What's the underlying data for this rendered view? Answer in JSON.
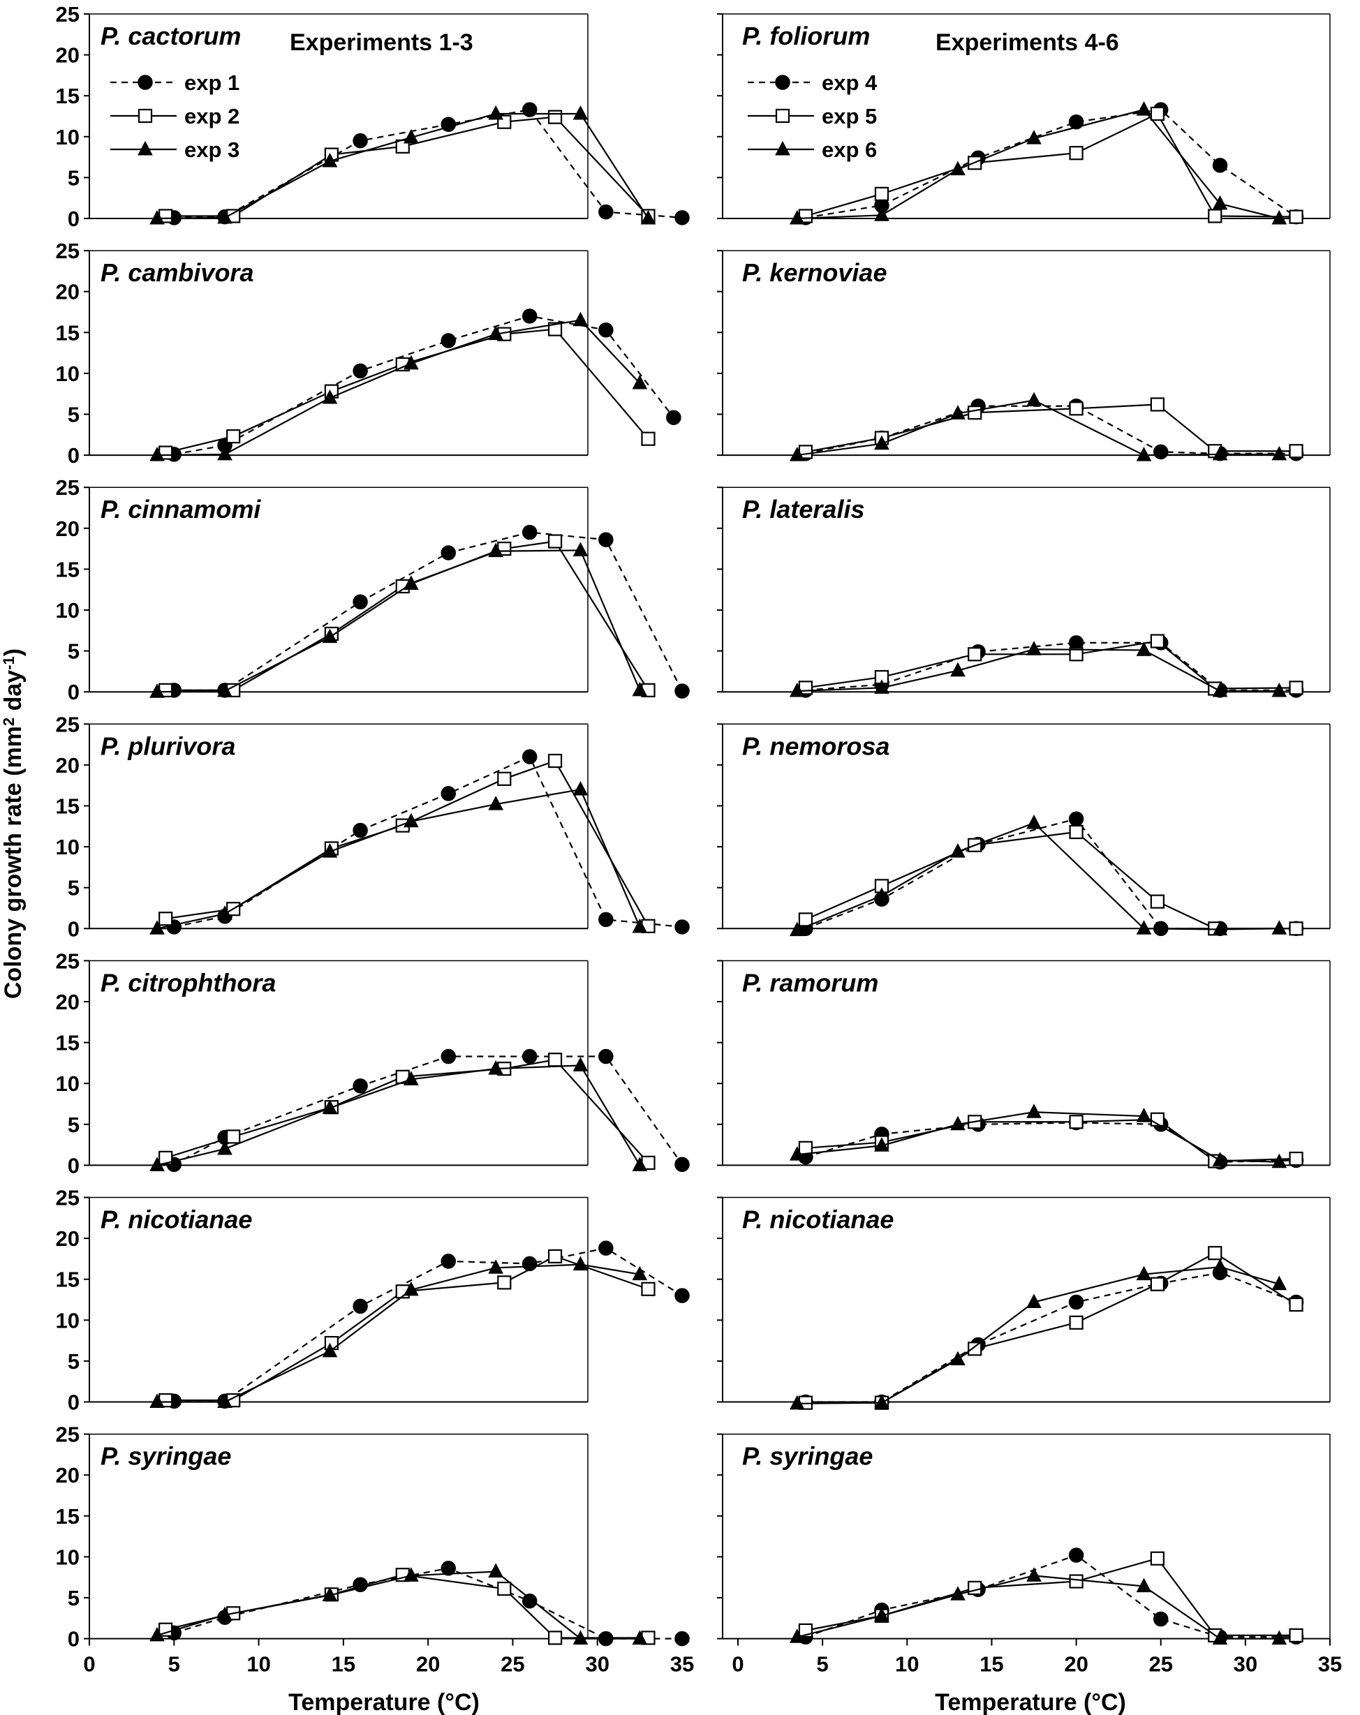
{
  "figure": {
    "ylabel_main": "Colony growth rate (mm",
    "ylabel_sup1": "2",
    "ylabel_mid": " day",
    "ylabel_sup2": "-1",
    "ylabel_end": ")",
    "xlabel_left": "Temperature (°C)",
    "xlabel_right": "Temperature (°C)",
    "header_left": "Experiments 1-3",
    "header_right": "Experiments 4-6",
    "legend_left": [
      "exp 1",
      "exp 2",
      "exp 3"
    ],
    "legend_right": [
      "exp 4",
      "exp 5",
      "exp 6"
    ],
    "y_ticks": [
      "0",
      "5",
      "10",
      "15",
      "20",
      "25"
    ],
    "x_ticks": [
      "0",
      "5",
      "10",
      "15",
      "20",
      "25",
      "30",
      "35"
    ]
  },
  "chart_data": [
    {
      "type": "line",
      "title": "P. cactorum",
      "column": "left",
      "row": 0,
      "xlabel": "",
      "ylabel": "",
      "xlim": [
        0,
        35
      ],
      "ylim": [
        0,
        25
      ],
      "series": [
        {
          "name": "exp 1",
          "x": [
            5,
            8,
            16,
            21.2,
            26,
            30.5,
            35
          ],
          "y": [
            0.1,
            0.2,
            9.5,
            11.5,
            13.3,
            0.8,
            0.1
          ]
        },
        {
          "name": "exp 2",
          "x": [
            4.5,
            8.5,
            14.3,
            18.5,
            24.5,
            27.5,
            33
          ],
          "y": [
            0.3,
            0.3,
            7.8,
            8.8,
            11.8,
            12.4,
            0.3
          ]
        },
        {
          "name": "exp 3",
          "x": [
            4,
            8,
            14.2,
            19,
            24,
            29,
            33
          ],
          "y": [
            0,
            0.1,
            7,
            9.9,
            12.8,
            12.8,
            0
          ]
        }
      ]
    },
    {
      "type": "line",
      "title": "P. cambivora",
      "column": "left",
      "row": 1,
      "xlabel": "",
      "ylabel": "",
      "xlim": [
        0,
        35
      ],
      "ylim": [
        0,
        25
      ],
      "series": [
        {
          "name": "exp 1",
          "x": [
            5,
            8,
            16,
            21.2,
            26,
            30.5,
            34.5
          ],
          "y": [
            0.1,
            1.2,
            10.3,
            14,
            17,
            15.3,
            4.6
          ]
        },
        {
          "name": "exp 2",
          "x": [
            4.5,
            8.5,
            14.3,
            18.5,
            24.5,
            27.5,
            33
          ],
          "y": [
            0.3,
            2.3,
            7.8,
            11.1,
            14.8,
            15.4,
            2
          ]
        },
        {
          "name": "exp 3",
          "x": [
            4,
            8,
            14.2,
            19,
            24,
            29,
            32.5
          ],
          "y": [
            0,
            0.1,
            7,
            11.2,
            14.8,
            16.5,
            8.8
          ]
        }
      ]
    },
    {
      "type": "line",
      "title": "P. cinnamomi",
      "column": "left",
      "row": 2,
      "xlabel": "",
      "ylabel": "",
      "xlim": [
        0,
        35
      ],
      "ylim": [
        0,
        25
      ],
      "series": [
        {
          "name": "exp 1",
          "x": [
            5,
            8,
            16,
            21.2,
            26,
            30.5,
            35
          ],
          "y": [
            0.2,
            0.2,
            11,
            17,
            19.5,
            18.6,
            0.1
          ]
        },
        {
          "name": "exp 2",
          "x": [
            4.5,
            8.5,
            14.3,
            18.5,
            24.5,
            27.5,
            33
          ],
          "y": [
            0.2,
            0.2,
            7.1,
            12.9,
            17.5,
            18.4,
            0.2
          ]
        },
        {
          "name": "exp 3",
          "x": [
            4,
            8,
            14.2,
            19,
            24,
            29,
            32.5
          ],
          "y": [
            0,
            0.1,
            6.7,
            13.2,
            17.2,
            17.3,
            0.2
          ]
        }
      ]
    },
    {
      "type": "line",
      "title": "P. plurivora",
      "column": "left",
      "row": 3,
      "xlabel": "",
      "ylabel": "",
      "xlim": [
        0,
        35
      ],
      "ylim": [
        0,
        25
      ],
      "series": [
        {
          "name": "exp 1",
          "x": [
            5,
            8,
            16,
            21.2,
            26,
            30.5,
            35
          ],
          "y": [
            0.2,
            1.5,
            12,
            16.5,
            21,
            1.1,
            0.2
          ]
        },
        {
          "name": "exp 2",
          "x": [
            4.5,
            8.5,
            14.3,
            18.5,
            24.5,
            27.5,
            33
          ],
          "y": [
            1.2,
            2.4,
            9.8,
            12.6,
            18.3,
            20.5,
            0.3
          ]
        },
        {
          "name": "exp 3",
          "x": [
            4,
            8,
            14.2,
            19,
            24,
            29,
            32.5
          ],
          "y": [
            0,
            1.8,
            9.4,
            13.1,
            15.2,
            17,
            0.2
          ]
        }
      ]
    },
    {
      "type": "line",
      "title": "P. citrophthora",
      "column": "left",
      "row": 4,
      "xlabel": "",
      "ylabel": "",
      "xlim": [
        0,
        35
      ],
      "ylim": [
        0,
        25
      ],
      "series": [
        {
          "name": "exp 1",
          "x": [
            5,
            8,
            16,
            21.2,
            26,
            30.5,
            35
          ],
          "y": [
            0.1,
            3.4,
            9.7,
            13.3,
            13.3,
            13.3,
            0.1
          ]
        },
        {
          "name": "exp 2",
          "x": [
            4.5,
            8.5,
            14.3,
            18.5,
            24.5,
            27.5,
            33
          ],
          "y": [
            0.9,
            3.5,
            7.1,
            10.8,
            11.8,
            12.9,
            0.3
          ]
        },
        {
          "name": "exp 3",
          "x": [
            4,
            8,
            14.2,
            19,
            24,
            29,
            32.5
          ],
          "y": [
            0,
            2,
            7,
            10.5,
            11.8,
            12.2,
            0
          ]
        }
      ]
    },
    {
      "type": "line",
      "title": "P. nicotianae",
      "column": "left",
      "row": 5,
      "xlabel": "",
      "ylabel": "",
      "xlim": [
        0,
        35
      ],
      "ylim": [
        0,
        25
      ],
      "series": [
        {
          "name": "exp 1",
          "x": [
            5,
            8,
            16,
            21.2,
            26,
            30.5,
            35
          ],
          "y": [
            0.1,
            0.1,
            11.7,
            17.2,
            16.9,
            18.8,
            13
          ]
        },
        {
          "name": "exp 2",
          "x": [
            4.5,
            8.5,
            14.3,
            18.5,
            24.5,
            27.5,
            33
          ],
          "y": [
            0.2,
            0.2,
            7.2,
            13.5,
            14.6,
            17.8,
            13.8
          ]
        },
        {
          "name": "exp 3",
          "x": [
            4,
            8,
            14.2,
            19,
            24,
            29,
            32.5
          ],
          "y": [
            0,
            0,
            6.2,
            13.7,
            16.4,
            16.8,
            15.6
          ]
        }
      ]
    },
    {
      "type": "line",
      "title": "P. syringae",
      "column": "left",
      "row": 6,
      "xlabel": "Temperature (°C)",
      "ylabel": "",
      "xlim": [
        0,
        35
      ],
      "ylim": [
        0,
        25
      ],
      "series": [
        {
          "name": "exp 1",
          "x": [
            5,
            8,
            16,
            21.2,
            26,
            30.5,
            35
          ],
          "y": [
            0.7,
            2.6,
            6.6,
            8.6,
            4.6,
            0,
            0
          ]
        },
        {
          "name": "exp 2",
          "x": [
            4.5,
            8.5,
            14.3,
            18.5,
            24.5,
            27.5,
            33
          ],
          "y": [
            1.1,
            3.1,
            5.4,
            7.8,
            6.1,
            0.1,
            0.1
          ]
        },
        {
          "name": "exp 3",
          "x": [
            4,
            8,
            14.2,
            19,
            24,
            29,
            32.5
          ],
          "y": [
            0.4,
            2.9,
            5.3,
            7.7,
            8.2,
            0,
            0
          ]
        }
      ]
    },
    {
      "type": "line",
      "title": "P. foliorum",
      "column": "right",
      "row": 0,
      "xlabel": "",
      "ylabel": "",
      "xlim": [
        0,
        35
      ],
      "ylim": [
        0,
        25
      ],
      "series": [
        {
          "name": "exp 4",
          "x": [
            4,
            8.5,
            14.2,
            20,
            25,
            28.5,
            33
          ],
          "y": [
            0.1,
            1.6,
            7.4,
            11.8,
            13.3,
            6.5,
            0.2
          ]
        },
        {
          "name": "exp 5",
          "x": [
            4,
            8.5,
            14,
            20,
            24.8,
            28.2,
            33
          ],
          "y": [
            0.3,
            3,
            6.8,
            8,
            12.8,
            0.3,
            0.2
          ]
        },
        {
          "name": "exp 6",
          "x": [
            3.5,
            8.5,
            13,
            17.5,
            24,
            28.5,
            32
          ],
          "y": [
            0,
            0.4,
            6,
            9.8,
            13.3,
            1.8,
            0
          ]
        }
      ]
    },
    {
      "type": "line",
      "title": "P. kernoviae",
      "column": "right",
      "row": 1,
      "xlabel": "",
      "ylabel": "",
      "xlim": [
        0,
        35
      ],
      "ylim": [
        0,
        25
      ],
      "series": [
        {
          "name": "exp 4",
          "x": [
            4,
            8.5,
            14.2,
            20,
            25,
            28.5,
            33
          ],
          "y": [
            0.2,
            2.1,
            6,
            6,
            0.4,
            0.2,
            0.2
          ]
        },
        {
          "name": "exp 5",
          "x": [
            4,
            8.5,
            14,
            20,
            24.8,
            28.2,
            33
          ],
          "y": [
            0.4,
            2.1,
            5.2,
            5.7,
            6.2,
            0.5,
            0.5
          ]
        },
        {
          "name": "exp 6",
          "x": [
            3.5,
            8.5,
            13,
            17.5,
            24,
            28.5,
            32
          ],
          "y": [
            0,
            1.4,
            5.1,
            6.7,
            0,
            0.1,
            0.1
          ]
        }
      ]
    },
    {
      "type": "line",
      "title": "P. lateralis",
      "column": "right",
      "row": 2,
      "xlabel": "",
      "ylabel": "",
      "xlim": [
        0,
        35
      ],
      "ylim": [
        0,
        25
      ],
      "series": [
        {
          "name": "exp 4",
          "x": [
            4,
            8.5,
            14.2,
            20,
            25,
            28.5,
            33
          ],
          "y": [
            0.2,
            0.9,
            4.9,
            6,
            6,
            0.2,
            0.2
          ]
        },
        {
          "name": "exp 5",
          "x": [
            4,
            8.5,
            14,
            20,
            24.8,
            28.2,
            33
          ],
          "y": [
            0.5,
            1.8,
            4.6,
            4.6,
            6.2,
            0.4,
            0.5
          ]
        },
        {
          "name": "exp 6",
          "x": [
            3.5,
            8.5,
            13,
            17.5,
            24,
            28.5,
            32
          ],
          "y": [
            0.1,
            0.5,
            2.6,
            5.2,
            5.1,
            0.1,
            0.1
          ]
        }
      ]
    },
    {
      "type": "line",
      "title": "P. nemorosa",
      "column": "right",
      "row": 3,
      "xlabel": "",
      "ylabel": "",
      "xlim": [
        0,
        35
      ],
      "ylim": [
        0,
        25
      ],
      "series": [
        {
          "name": "exp 4",
          "x": [
            4,
            8.5,
            14.2,
            20,
            25,
            28.5,
            33
          ],
          "y": [
            0,
            3.6,
            10.3,
            13.4,
            0,
            0,
            0
          ]
        },
        {
          "name": "exp 5",
          "x": [
            4,
            8.5,
            14,
            20,
            24.8,
            28.2,
            33
          ],
          "y": [
            1.1,
            5.2,
            10.2,
            11.8,
            3.3,
            0,
            0
          ]
        },
        {
          "name": "exp 6",
          "x": [
            3.5,
            8.5,
            13,
            17.5,
            24,
            28.5,
            32
          ],
          "y": [
            -0.2,
            4,
            9.4,
            12.9,
            0,
            -0.1,
            0
          ]
        }
      ]
    },
    {
      "type": "line",
      "title": "P. ramorum",
      "column": "right",
      "row": 4,
      "xlabel": "",
      "ylabel": "",
      "xlim": [
        0,
        35
      ],
      "ylim": [
        0,
        25
      ],
      "series": [
        {
          "name": "exp 4",
          "x": [
            4,
            8.5,
            14.2,
            20,
            25,
            28.5,
            33
          ],
          "y": [
            1,
            3.8,
            5,
            5.2,
            5,
            0.4,
            0.6
          ]
        },
        {
          "name": "exp 5",
          "x": [
            4,
            8.5,
            14,
            20,
            24.8,
            28.2,
            33
          ],
          "y": [
            2.1,
            2.8,
            5.3,
            5.3,
            5.6,
            0.5,
            0.8
          ]
        },
        {
          "name": "exp 6",
          "x": [
            3.5,
            8.5,
            13,
            17.5,
            24,
            28.5,
            32
          ],
          "y": [
            1.3,
            2.4,
            5,
            6.5,
            6,
            0.6,
            0.4
          ]
        }
      ]
    },
    {
      "type": "line",
      "title": "P. nicotianae",
      "column": "right",
      "row": 5,
      "xlabel": "",
      "ylabel": "",
      "xlim": [
        0,
        35
      ],
      "ylim": [
        0,
        25
      ],
      "series": [
        {
          "name": "exp 4",
          "x": [
            4,
            8.5,
            14.2,
            20,
            25,
            28.5,
            33
          ],
          "y": [
            0,
            0,
            7,
            12.2,
            14.5,
            15.8,
            12.2
          ]
        },
        {
          "name": "exp 5",
          "x": [
            4,
            8.5,
            14,
            20,
            24.8,
            28.2,
            33
          ],
          "y": [
            -0.1,
            -0.1,
            6.5,
            9.7,
            14.4,
            18.2,
            11.9
          ]
        },
        {
          "name": "exp 6",
          "x": [
            3.5,
            8.5,
            13,
            17.5,
            24,
            28.5,
            32
          ],
          "y": [
            -0.2,
            -0.1,
            5.2,
            12.2,
            15.6,
            16.5,
            14.4
          ]
        }
      ]
    },
    {
      "type": "line",
      "title": "P. syringae",
      "column": "right",
      "row": 6,
      "xlabel": "Temperature (°C)",
      "ylabel": "",
      "xlim": [
        0,
        35
      ],
      "ylim": [
        0,
        25
      ],
      "series": [
        {
          "name": "exp 4",
          "x": [
            4,
            8.5,
            14.2,
            20,
            25,
            28.5,
            33
          ],
          "y": [
            0.2,
            3.5,
            6,
            10.2,
            2.4,
            0.2,
            0.2
          ]
        },
        {
          "name": "exp 5",
          "x": [
            4,
            8.5,
            14,
            20,
            24.8,
            28.2,
            33
          ],
          "y": [
            1,
            2.8,
            6.2,
            7,
            9.8,
            0.4,
            0.4
          ]
        },
        {
          "name": "exp 6",
          "x": [
            3.5,
            8.5,
            13,
            17.5,
            24,
            28.5,
            32
          ],
          "y": [
            0.2,
            2.8,
            5.4,
            7.7,
            6.4,
            0,
            0
          ]
        }
      ]
    }
  ]
}
